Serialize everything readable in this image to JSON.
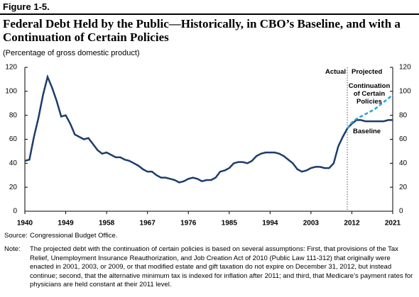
{
  "figure_label": "Figure 1-5.",
  "chart_data": {
    "type": "line",
    "title": "Federal Debt Held by the Public—Historically, in CBO’s Baseline, and with a Continuation of Certain Policies",
    "subtitle": "(Percentage of gross domestic product)",
    "x": [
      1940,
      1941,
      1942,
      1943,
      1944,
      1945,
      1946,
      1947,
      1948,
      1949,
      1950,
      1951,
      1952,
      1953,
      1954,
      1955,
      1956,
      1957,
      1958,
      1959,
      1960,
      1961,
      1962,
      1963,
      1964,
      1965,
      1966,
      1967,
      1968,
      1969,
      1970,
      1971,
      1972,
      1973,
      1974,
      1975,
      1976,
      1977,
      1978,
      1979,
      1980,
      1981,
      1982,
      1983,
      1984,
      1985,
      1986,
      1987,
      1988,
      1989,
      1990,
      1991,
      1992,
      1993,
      1994,
      1995,
      1996,
      1997,
      1998,
      1999,
      2000,
      2001,
      2002,
      2003,
      2004,
      2005,
      2006,
      2007,
      2008,
      2009,
      2010,
      2011,
      2012,
      2013,
      2014,
      2015,
      2016,
      2017,
      2018,
      2019,
      2020,
      2021
    ],
    "series": [
      {
        "name": "Baseline",
        "color": "#1c3d6b",
        "dashed": false,
        "values": [
          42,
          43,
          62,
          78,
          97,
          112,
          103,
          92,
          79,
          80,
          73,
          64,
          62,
          60,
          61,
          56,
          51,
          48,
          49,
          47,
          45,
          45,
          43,
          42,
          40,
          38,
          35,
          33,
          33,
          30,
          28,
          28,
          27,
          26,
          24,
          25,
          27,
          28,
          27,
          25,
          26,
          26,
          28,
          33,
          34,
          36,
          40,
          41,
          41,
          40,
          42,
          46,
          48,
          49,
          49,
          49,
          48,
          46,
          43,
          40,
          35,
          33,
          34,
          36,
          37,
          37,
          36,
          36,
          40,
          54,
          62,
          69,
          73,
          76,
          76,
          75,
          75,
          75,
          75,
          75,
          76,
          76
        ]
      },
      {
        "name": "Continuation of Certain Policies",
        "color": "#2ba3d6",
        "dashed": true,
        "values": [
          null,
          null,
          null,
          null,
          null,
          null,
          null,
          null,
          null,
          null,
          null,
          null,
          null,
          null,
          null,
          null,
          null,
          null,
          null,
          null,
          null,
          null,
          null,
          null,
          null,
          null,
          null,
          null,
          null,
          null,
          null,
          null,
          null,
          null,
          null,
          null,
          null,
          null,
          null,
          null,
          null,
          null,
          null,
          null,
          null,
          null,
          null,
          null,
          null,
          null,
          null,
          null,
          null,
          null,
          null,
          null,
          null,
          null,
          null,
          null,
          null,
          null,
          null,
          null,
          null,
          null,
          null,
          null,
          null,
          null,
          null,
          69,
          74,
          77,
          79,
          81,
          83,
          85,
          88,
          91,
          94,
          97
        ]
      }
    ],
    "annotations": [
      "Actual",
      "Projected"
    ],
    "xlim": [
      1940,
      2021
    ],
    "xticks": [
      1940,
      1949,
      1958,
      1967,
      1976,
      1985,
      1994,
      2003,
      2012,
      2021
    ],
    "ylim": [
      0,
      120
    ],
    "yticks": [
      0,
      20,
      40,
      60,
      80,
      100,
      120
    ],
    "source": [
      "Source:",
      "Congressional Budget Office."
    ],
    "note": [
      "Note:",
      "The projected debt with the continuation of certain policies is based on several assumptions: First, that provisions of the Tax Relief, Unemployment Insurance Reauthorization, and Job Creation Act of 2010 (Public Law 111-312) that originally were enacted in 2001, 2003, or 2009, or that modified estate and gift taxation do not expire on December 31, 2012, but instead continue; second, that the alternative minimum tax is indexed for inflation after 2011; and third, that Medicare’s payment rates for physicians are held constant at their 2011 level."
    ]
  }
}
